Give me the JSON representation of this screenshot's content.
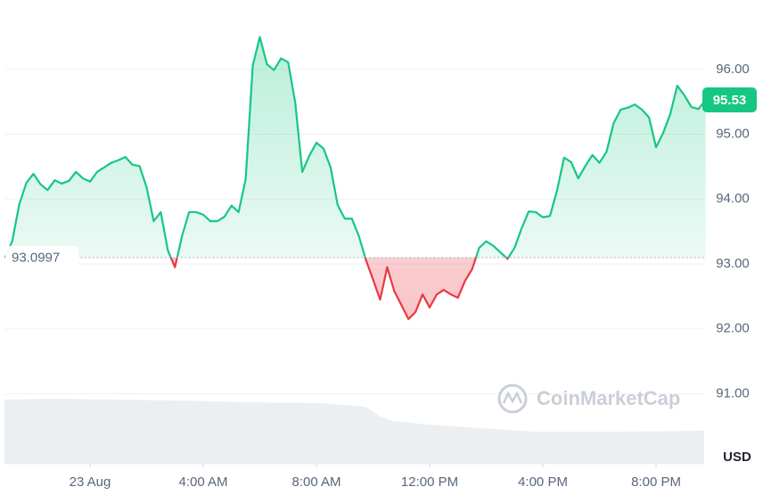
{
  "chart_data": {
    "type": "line",
    "x": [
      -3,
      -2.75,
      -2.5,
      -2.25,
      -2,
      -1.75,
      -1.5,
      -1.25,
      -1,
      -0.75,
      -0.5,
      -0.25,
      0,
      0.25,
      0.5,
      0.75,
      1,
      1.25,
      1.5,
      1.75,
      2,
      2.25,
      2.5,
      2.75,
      3,
      3.25,
      3.5,
      3.75,
      4,
      4.25,
      4.5,
      4.75,
      5,
      5.25,
      5.5,
      5.75,
      6,
      6.25,
      6.5,
      6.75,
      7,
      7.25,
      7.5,
      7.75,
      8,
      8.25,
      8.5,
      8.75,
      9,
      9.25,
      9.5,
      9.75,
      10,
      10.25,
      10.5,
      10.75,
      11,
      11.25,
      11.5,
      11.75,
      12,
      12.25,
      12.5,
      12.75,
      13,
      13.25,
      13.5,
      13.75,
      14,
      14.25,
      14.5,
      14.75,
      15,
      15.25,
      15.5,
      15.75,
      16,
      16.25,
      16.5,
      16.75,
      17,
      17.25,
      17.5,
      17.75,
      18,
      18.25,
      18.5,
      18.75,
      19,
      19.25,
      19.5,
      19.75,
      20,
      20.25,
      20.5,
      20.75,
      21,
      21.25,
      21.5,
      21.75
    ],
    "series": [
      {
        "color_up": "#16c784",
        "color_down": "#ea3943",
        "values": [
          93.1,
          93.35,
          93.92,
          94.25,
          94.39,
          94.23,
          94.14,
          94.29,
          94.24,
          94.28,
          94.42,
          94.32,
          94.27,
          94.42,
          94.49,
          94.56,
          94.6,
          94.65,
          94.53,
          94.51,
          94.18,
          93.66,
          93.8,
          93.21,
          92.95,
          93.43,
          93.8,
          93.8,
          93.76,
          93.66,
          93.66,
          93.73,
          93.9,
          93.8,
          94.31,
          96.06,
          96.5,
          96.08,
          95.99,
          96.17,
          96.11,
          95.49,
          94.42,
          94.67,
          94.87,
          94.78,
          94.49,
          93.91,
          93.7,
          93.7,
          93.43,
          93.06,
          92.76,
          92.45,
          92.95,
          92.58,
          92.37,
          92.15,
          92.26,
          92.53,
          92.33,
          92.53,
          92.6,
          92.53,
          92.48,
          92.74,
          92.92,
          93.25,
          93.35,
          93.28,
          93.18,
          93.08,
          93.25,
          93.55,
          93.81,
          93.8,
          93.72,
          93.74,
          94.13,
          94.64,
          94.57,
          94.32,
          94.51,
          94.68,
          94.56,
          94.73,
          95.17,
          95.38,
          95.41,
          95.46,
          95.38,
          95.26,
          94.8,
          95.02,
          95.31,
          95.75,
          95.6,
          95.42,
          95.39,
          95.53
        ]
      }
    ],
    "baseline": 93.0997,
    "xlim": [
      -3,
      21.75
    ],
    "ylim": [
      89.92,
      97.07
    ],
    "xticks": [
      {
        "value": 0,
        "label": "23 Aug"
      },
      {
        "value": 4,
        "label": "4:00 AM"
      },
      {
        "value": 8,
        "label": "8:00 AM"
      },
      {
        "value": 12,
        "label": "12:00 PM"
      },
      {
        "value": 16,
        "label": "4:00 PM"
      },
      {
        "value": 20,
        "label": "8:00 PM"
      }
    ],
    "yticks": [
      {
        "value": 91,
        "label": "91.00"
      },
      {
        "value": 92,
        "label": "92.00"
      },
      {
        "value": 93,
        "label": "93.00"
      },
      {
        "value": 94,
        "label": "94.00"
      },
      {
        "value": 95,
        "label": "95.00"
      },
      {
        "value": 96,
        "label": "96.00"
      }
    ],
    "y_label": "USD",
    "watermark": "CoinMarketCap",
    "grid": true
  }
}
